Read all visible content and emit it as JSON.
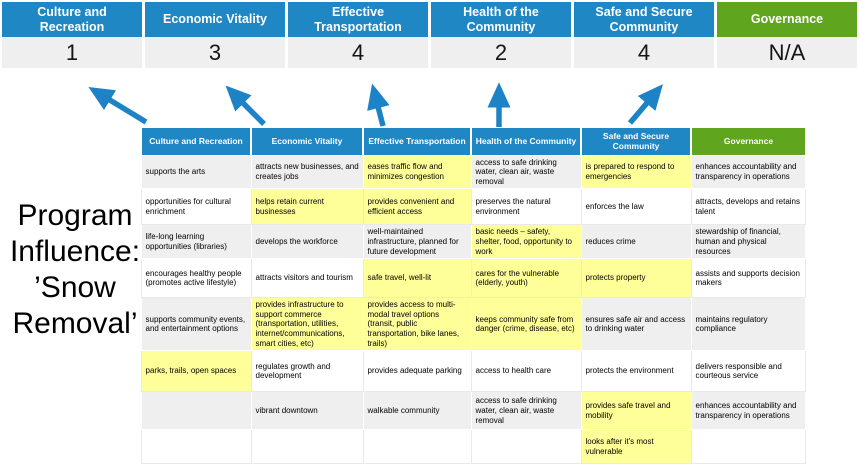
{
  "program_title": {
    "text": "Program Influence: ’Snow Removal’"
  },
  "colors": {
    "header_blue": "#1E87C4",
    "header_green": "#5FA51D",
    "score_background": "#EFEFEF",
    "row_gray": "#EFEFEF",
    "highlight_yellow": "#FFFF99",
    "arrow_blue": "#1E82C6"
  },
  "scoreboard": {
    "cards": [
      {
        "label": "Culture and Recreation",
        "score": "1",
        "theme": "blue"
      },
      {
        "label": "Economic Vitality",
        "score": "3",
        "theme": "blue"
      },
      {
        "label": "Effective Transportation",
        "score": "4",
        "theme": "blue"
      },
      {
        "label": "Health of the Community",
        "score": "2",
        "theme": "blue"
      },
      {
        "label": "Safe and Secure Community",
        "score": "4",
        "theme": "blue"
      },
      {
        "label": "Governance",
        "score": "N/A",
        "theme": "green"
      }
    ]
  },
  "matrix": {
    "headers": [
      {
        "label": "Culture and Recreation",
        "theme": "blue"
      },
      {
        "label": "Economic Vitality",
        "theme": "blue"
      },
      {
        "label": "Effective Transportation",
        "theme": "blue"
      },
      {
        "label": "Health of the Community",
        "theme": "blue"
      },
      {
        "label": "Safe and Secure Community",
        "theme": "blue"
      },
      {
        "label": "Governance",
        "theme": "green"
      }
    ],
    "rows": [
      [
        {
          "text": "supports the arts",
          "highlight": false
        },
        {
          "text": "attracts new businesses, and creates jobs",
          "highlight": false
        },
        {
          "text": "eases traffic flow and minimizes congestion",
          "highlight": true
        },
        {
          "text": "access to safe drinking water, clean air, waste removal",
          "highlight": false
        },
        {
          "text": "is prepared to respond to emergencies",
          "highlight": true
        },
        {
          "text": "enhances accountability and transparency in operations",
          "highlight": false
        }
      ],
      [
        {
          "text": "opportunities for cultural enrichment",
          "highlight": false
        },
        {
          "text": "helps retain current businesses",
          "highlight": true
        },
        {
          "text": "provides convenient and efficient access",
          "highlight": true
        },
        {
          "text": "preserves the natural environment",
          "highlight": false
        },
        {
          "text": "enforces the law",
          "highlight": false
        },
        {
          "text": "attracts, develops and retains talent",
          "highlight": false
        }
      ],
      [
        {
          "text": "life-long learning opportunities (libraries)",
          "highlight": false
        },
        {
          "text": "develops the workforce",
          "highlight": false
        },
        {
          "text": "well-maintained infrastructure, planned for future development",
          "highlight": false
        },
        {
          "text": "basic needs – safety, shelter, food, opportunity to work",
          "highlight": true
        },
        {
          "text": "reduces crime",
          "highlight": false
        },
        {
          "text": "stewardship of financial, human and physical resources",
          "highlight": false
        }
      ],
      [
        {
          "text": "encourages healthy people (promotes active lifestyle)",
          "highlight": false
        },
        {
          "text": "attracts visitors and tourism",
          "highlight": false
        },
        {
          "text": "safe travel, well-lit",
          "highlight": true
        },
        {
          "text": "cares for the vulnerable (elderly, youth)",
          "highlight": true
        },
        {
          "text": "protects property",
          "highlight": true
        },
        {
          "text": "assists and supports decision makers",
          "highlight": false
        }
      ],
      [
        {
          "text": "supports community events, and entertainment options",
          "highlight": false
        },
        {
          "text": "provides infrastructure to support commerce (transportation, utilities, internet/communications, smart cities, etc)",
          "highlight": true
        },
        {
          "text": "provides access to multi-modal travel options (transit, public transportation, bike lanes, trails)",
          "highlight": true
        },
        {
          "text": "keeps community safe from danger (crime, disease, etc)",
          "highlight": true
        },
        {
          "text": "ensures safe air and access to drinking water",
          "highlight": false
        },
        {
          "text": "maintains regulatory compliance",
          "highlight": false
        }
      ],
      [
        {
          "text": "parks, trails, open spaces",
          "highlight": true
        },
        {
          "text": "regulates growth and development",
          "highlight": false
        },
        {
          "text": "provides adequate parking",
          "highlight": false
        },
        {
          "text": "access to health care",
          "highlight": false
        },
        {
          "text": "protects the environment",
          "highlight": false
        },
        {
          "text": "delivers responsible and courteous service",
          "highlight": false
        }
      ],
      [
        {
          "text": "",
          "highlight": false
        },
        {
          "text": "vibrant downtown",
          "highlight": false
        },
        {
          "text": "walkable community",
          "highlight": false
        },
        {
          "text": "access to safe drinking water, clean air, waste removal",
          "highlight": false
        },
        {
          "text": "provides safe travel and mobility",
          "highlight": true
        },
        {
          "text": "enhances accountability and transparency in operations",
          "highlight": false
        }
      ],
      [
        {
          "text": "",
          "highlight": false
        },
        {
          "text": "",
          "highlight": false
        },
        {
          "text": "",
          "highlight": false
        },
        {
          "text": "",
          "highlight": false
        },
        {
          "text": "looks after it's most vulnerable",
          "highlight": true
        },
        {
          "text": "",
          "highlight": false
        }
      ]
    ]
  }
}
